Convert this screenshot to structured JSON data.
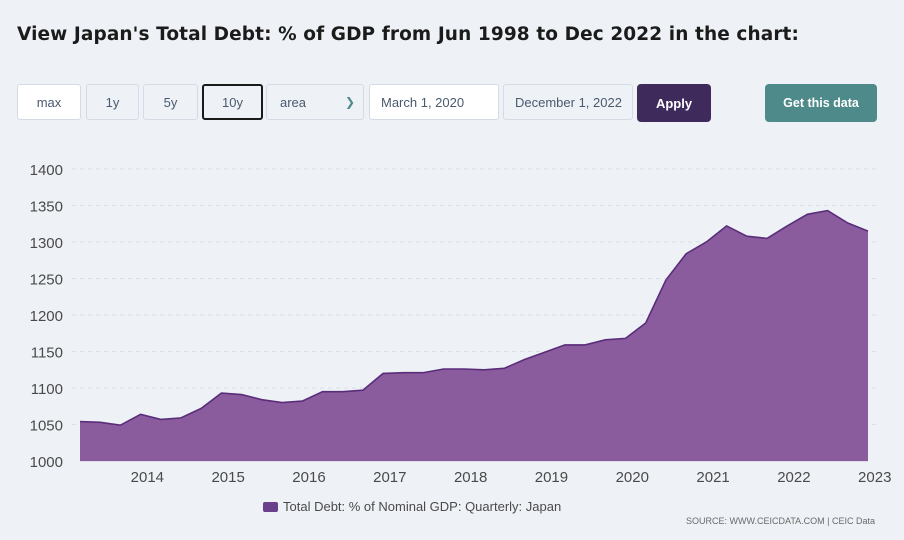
{
  "page": {
    "title": "View Japan's Total Debt: % of GDP from Jun 1998 to Dec 2022 in the chart:"
  },
  "controls": {
    "range_buttons": [
      "max",
      "1y",
      "5y",
      "10y"
    ],
    "active_range": "10y",
    "chart_type_select": "area",
    "start_date": "March 1, 2020",
    "end_date": "December 1, 2022",
    "apply_label": "Apply",
    "get_data_label": "Get this data"
  },
  "colors": {
    "area_fill": "#8a5c9e",
    "area_stroke": "#5a2d7a",
    "apply_bg": "#3e2b5c",
    "get_data_bg": "#4f8a8b"
  },
  "legend": {
    "label": "Total Debt: % of Nominal GDP: Quarterly: Japan"
  },
  "source": "SOURCE: WWW.CEICDATA.COM | CEIC Data",
  "chart_data": {
    "type": "area",
    "series": [
      {
        "name": "Total Debt: % of Nominal GDP: Quarterly: Japan",
        "x": [
          "2013-03",
          "2013-06",
          "2013-09",
          "2013-12",
          "2014-03",
          "2014-06",
          "2014-09",
          "2014-12",
          "2015-03",
          "2015-06",
          "2015-09",
          "2015-12",
          "2016-03",
          "2016-06",
          "2016-09",
          "2016-12",
          "2017-03",
          "2017-06",
          "2017-09",
          "2017-12",
          "2018-03",
          "2018-06",
          "2018-09",
          "2018-12",
          "2019-03",
          "2019-06",
          "2019-09",
          "2019-12",
          "2020-03",
          "2020-06",
          "2020-09",
          "2020-12",
          "2021-03",
          "2021-06",
          "2021-09",
          "2021-12",
          "2022-03",
          "2022-06",
          "2022-09",
          "2022-12"
        ],
        "values": [
          1054,
          1053,
          1049,
          1064,
          1057,
          1059,
          1072,
          1093,
          1091,
          1084,
          1080,
          1082,
          1095,
          1095,
          1097,
          1120,
          1121,
          1121,
          1126,
          1126,
          1125,
          1127,
          1139,
          1149,
          1159,
          1159,
          1166,
          1168,
          1189,
          1248,
          1284,
          1300,
          1322,
          1308,
          1305,
          1322,
          1338,
          1343,
          1326,
          1315
        ]
      }
    ],
    "y_ticks": [
      1000,
      1050,
      1100,
      1150,
      1200,
      1250,
      1300,
      1350,
      1400
    ],
    "x_tick_labels": [
      "2014",
      "2015",
      "2016",
      "2017",
      "2018",
      "2019",
      "2020",
      "2021",
      "2022",
      "2023"
    ],
    "ylim": [
      1000,
      1400
    ],
    "grid": "horizontal-dashed",
    "legend_position": "bottom"
  }
}
